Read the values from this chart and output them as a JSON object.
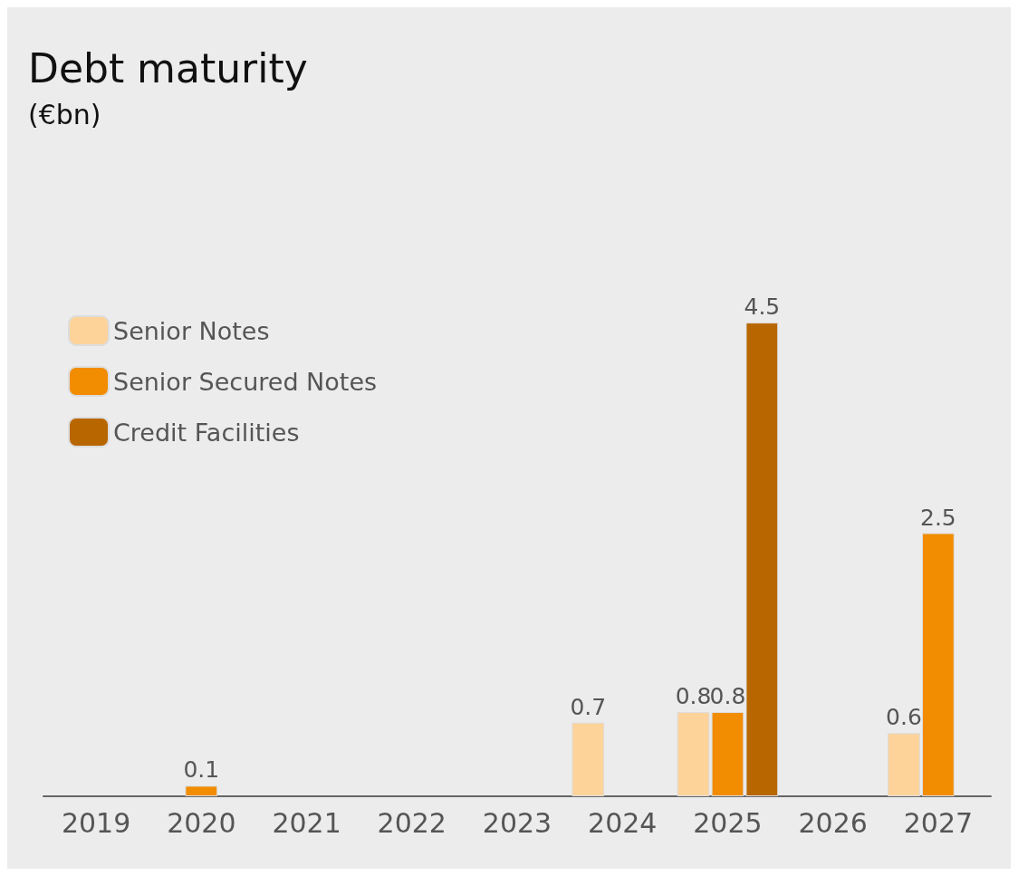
{
  "chart_data": {
    "type": "bar",
    "title": "Debt maturity",
    "subtitle": "(€bn)",
    "categories": [
      "2019",
      "2020",
      "2021",
      "2022",
      "2023",
      "2024",
      "2025",
      "2026",
      "2027"
    ],
    "series": [
      {
        "name": "Senior Notes",
        "color": "#fdd39a",
        "values": [
          null,
          null,
          null,
          null,
          null,
          0.7,
          0.8,
          null,
          0.6
        ]
      },
      {
        "name": "Senior Secured Notes",
        "color": "#f28c00",
        "values": [
          null,
          0.1,
          null,
          null,
          null,
          null,
          0.8,
          null,
          2.5
        ]
      },
      {
        "name": "Credit Facilities",
        "color": "#b86600",
        "values": [
          null,
          null,
          null,
          null,
          null,
          null,
          4.5,
          null,
          null
        ]
      }
    ],
    "data_labels": true,
    "legend": "left"
  }
}
